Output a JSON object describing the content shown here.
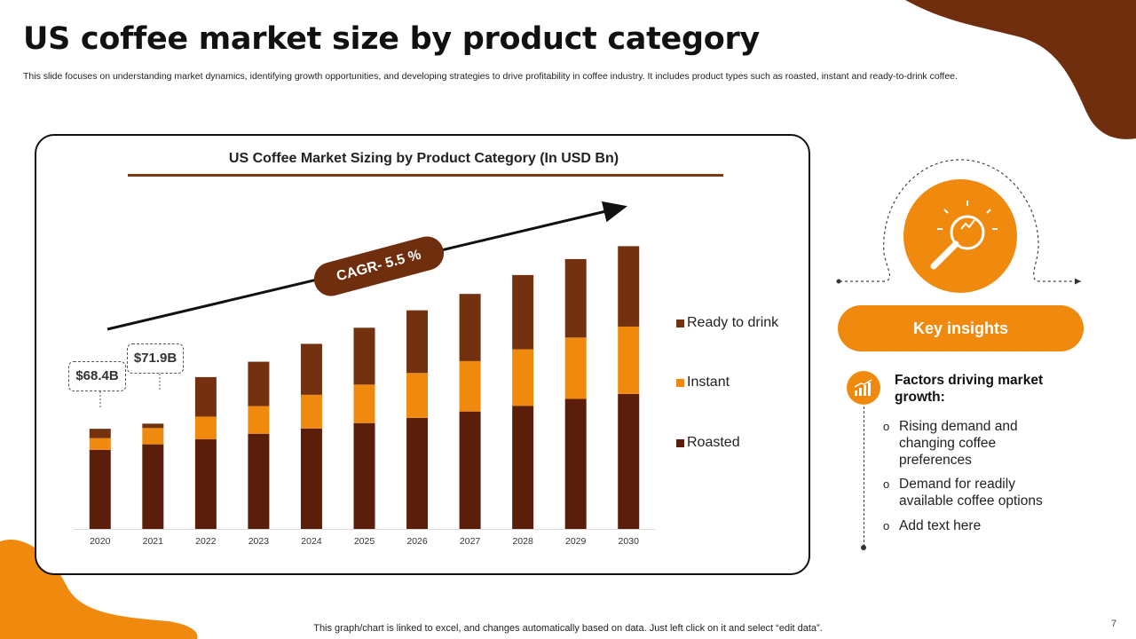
{
  "slide": {
    "title": "US coffee market size by product category",
    "subtitle": "This slide focuses on understanding market dynamics, identifying growth opportunities, and developing strategies to drive profitability in coffee industry. It includes product types such as roasted, instant and ready-to-drink coffee.",
    "footnote": "This graph/chart is linked to excel,  and changes automatically based on data. Just left click on it and select “edit data”.",
    "page_number": "7"
  },
  "colors": {
    "accent_orange": "#f08a0f",
    "dark_brown": "#6f2e0d",
    "roasted": "#5a1e0a",
    "instant": "#f08a0f",
    "ready_to_drink": "#733110"
  },
  "chart_data": {
    "type": "bar",
    "stacked": true,
    "title": "US Coffee Market Sizing by Product Category (In USD Bn)",
    "categories": [
      "2020",
      "2021",
      "2022",
      "2023",
      "2024",
      "2025",
      "2026",
      "2027",
      "2028",
      "2029",
      "2030"
    ],
    "series": [
      {
        "name": "Roasted",
        "values": [
          54.0,
          57.8,
          61.2,
          65.0,
          68.6,
          72.3,
          75.8,
          80.2,
          84.1,
          88.8,
          92.2
        ]
      },
      {
        "name": "Instant",
        "values": [
          8.0,
          11.1,
          15.5,
          18.9,
          23.0,
          26.3,
          30.7,
          34.4,
          38.6,
          41.9,
          46.0
        ]
      },
      {
        "name": "Ready to drink",
        "values": [
          6.4,
          3.0,
          27.0,
          30.3,
          34.8,
          38.8,
          42.8,
          45.9,
          50.7,
          53.6,
          54.9
        ]
      }
    ],
    "ylim": [
      0,
      200
    ],
    "legend_position": "right",
    "annotations": {
      "callouts": [
        {
          "category": "2020",
          "text": "$68.4B"
        },
        {
          "category": "2021",
          "text": "$71.9B"
        }
      ],
      "cagr_label": "CAGR- 5.5 %"
    }
  },
  "insights": {
    "header": "Key insights",
    "icon": "lightbulb-magnifier-icon",
    "factors_title": "Factors driving market growth:",
    "factors_icon": "growth-chart-icon",
    "bullet_marker": "o",
    "bullets": [
      "Rising demand and changing coffee preferences",
      "Demand for readily available coffee options",
      "Add text here"
    ]
  }
}
